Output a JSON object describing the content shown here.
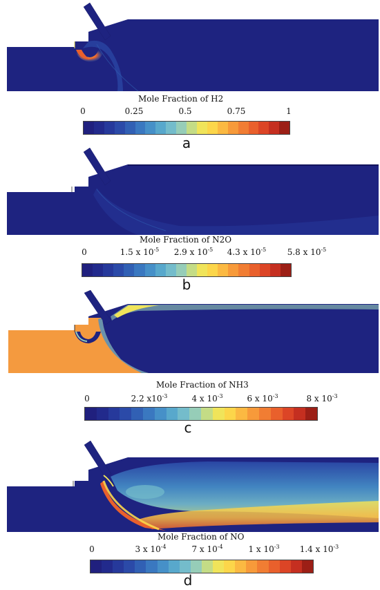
{
  "panels": [
    {
      "id": "a",
      "letter": "a",
      "colorbar_title": "Mole Fraction of H2",
      "ticks": [
        {
          "m": "0",
          "e": ""
        },
        {
          "m": "0.25",
          "e": ""
        },
        {
          "m": "0.5",
          "e": ""
        },
        {
          "m": "0.75",
          "e": ""
        },
        {
          "m": "1",
          "e": ""
        }
      ]
    },
    {
      "id": "b",
      "letter": "b",
      "colorbar_title": "Mole Fraction of N2O",
      "ticks": [
        {
          "m": "0",
          "e": ""
        },
        {
          "m": "1.5 x 10",
          "e": "-5"
        },
        {
          "m": "2.9 x 10",
          "e": "-5"
        },
        {
          "m": "4.3 x 10",
          "e": "-5"
        },
        {
          "m": "5.8 x 10",
          "e": "-5"
        }
      ]
    },
    {
      "id": "c",
      "letter": "c",
      "colorbar_title": "Mole Fraction of NH3",
      "ticks": [
        {
          "m": "0",
          "e": ""
        },
        {
          "m": "2.2 x10",
          "e": "-3"
        },
        {
          "m": "4 x 10",
          "e": "-3"
        },
        {
          "m": "6 x 10",
          "e": "-3"
        },
        {
          "m": "8 x 10",
          "e": "-3"
        }
      ]
    },
    {
      "id": "d",
      "letter": "d",
      "colorbar_title": "Mole Fraction of NO",
      "ticks": [
        {
          "m": "0",
          "e": ""
        },
        {
          "m": "3 x 10",
          "e": "-4"
        },
        {
          "m": "7 x 10",
          "e": "-4"
        },
        {
          "m": "1 x 10",
          "e": "-3"
        },
        {
          "m": "1.4 x 10",
          "e": "-3"
        }
      ]
    }
  ],
  "colors": {
    "background_field": "#1e2380",
    "colormap": [
      "#20207e",
      "#222a8c",
      "#26399b",
      "#2b4aa8",
      "#3160b4",
      "#3a78c0",
      "#4690c8",
      "#58a8cc",
      "#74bccb",
      "#96cdb8",
      "#c4dc86",
      "#f0e45a",
      "#fcd64a",
      "#fbb942",
      "#f79a3a",
      "#f17d33",
      "#e9602c",
      "#dc4526",
      "#c52f20",
      "#9c1f16"
    ]
  }
}
